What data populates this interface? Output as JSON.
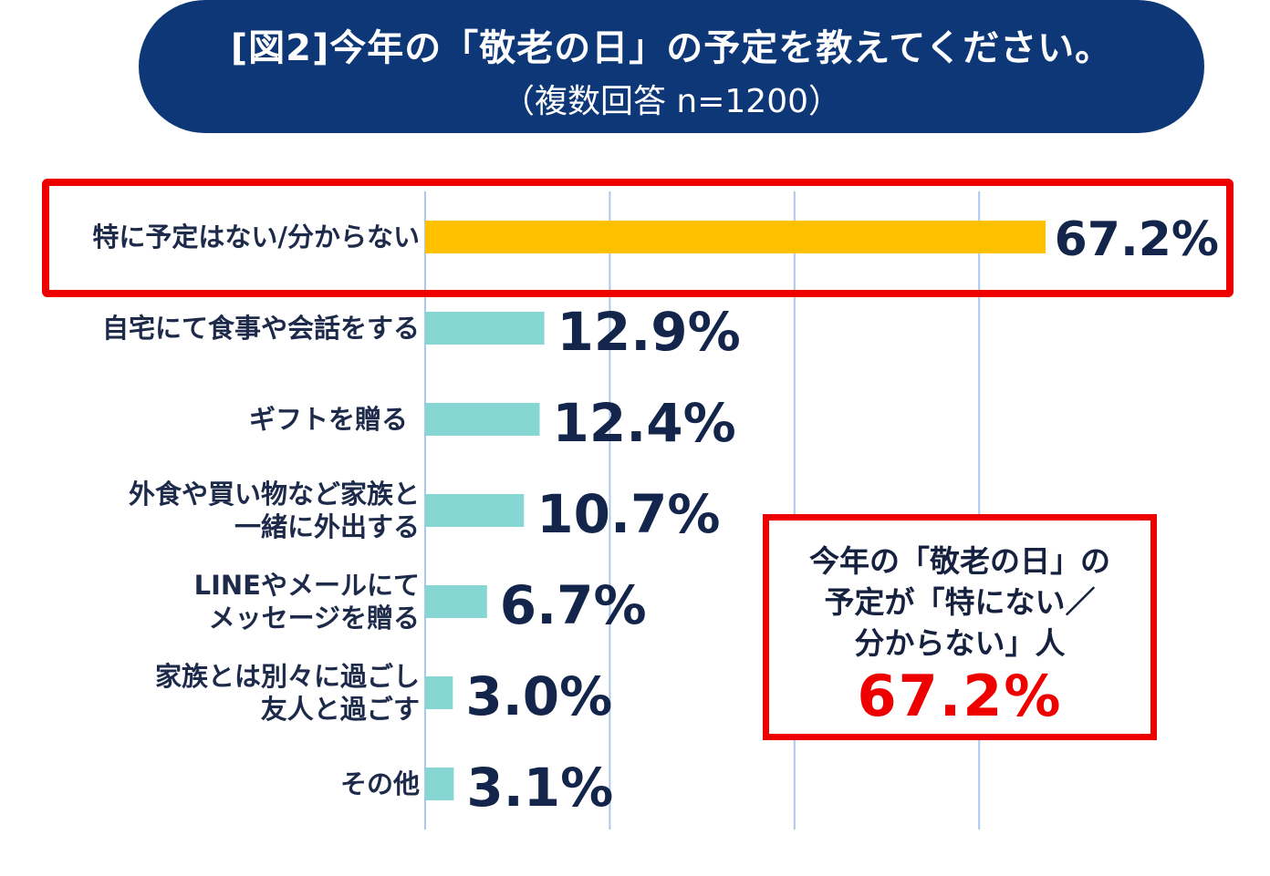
{
  "title": {
    "main": "[図2]今年の「敬老の日」の予定を教えてください。",
    "sub": "（複数回答 n=1200）"
  },
  "chart_data": {
    "type": "bar",
    "orientation": "horizontal",
    "categories": [
      [
        "特に予定はない/分からない"
      ],
      [
        "自宅にて食事や会話をする"
      ],
      [
        "ギフトを贈る"
      ],
      [
        "外食や買い物など家族と",
        "一緒に外出する"
      ],
      [
        "LINEやメールにて",
        "メッセージを贈る"
      ],
      [
        "家族とは別々に過ごし",
        "友人と過ごす"
      ],
      [
        "その他"
      ]
    ],
    "values": [
      67.2,
      12.9,
      12.4,
      10.7,
      6.7,
      3.0,
      3.1
    ],
    "value_labels": [
      "67.2%",
      "12.9%",
      "12.4%",
      "10.7%",
      "6.7%",
      "3.0%",
      "3.1%"
    ],
    "xlim": [
      0,
      80
    ],
    "grid": true,
    "colors": {
      "highlight_bar": "#ffc000",
      "bar": "#86d7d3",
      "gridline": "#a9c8ee",
      "highlight_border": "#ee0000"
    }
  },
  "callout": {
    "lines": [
      "今年の「敬老の日」の",
      "予定が「特にない／",
      "分からない」人"
    ],
    "value": "67.2%"
  }
}
